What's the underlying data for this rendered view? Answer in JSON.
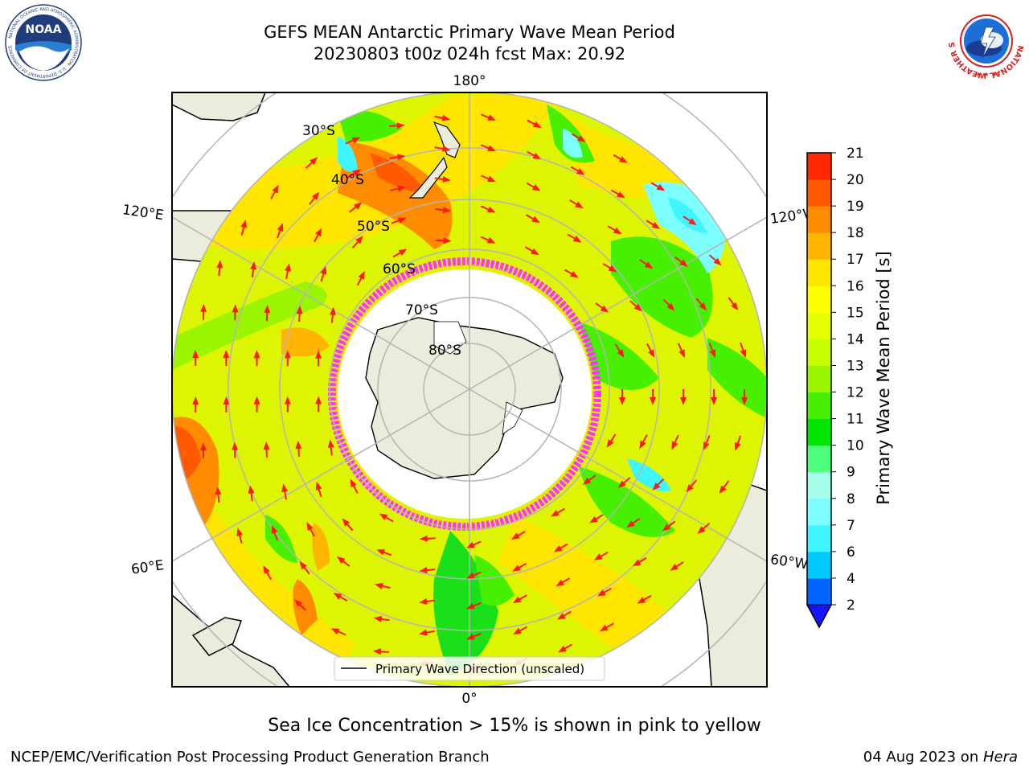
{
  "header": {
    "title_line1": "GEFS MEAN Antarctic Primary Wave Mean Period",
    "title_line2": "20230803 t00z 024h fcst   Max: 20.92"
  },
  "logos": {
    "left": {
      "icon": "noaa-logo",
      "text": "NOAA",
      "ring_text": "NATIONAL OCEANIC AND ATMOSPHERIC ADMINISTRATION · U.S. DEPARTMENT OF COMMERCE"
    },
    "right": {
      "icon": "national-weather-service-logo",
      "ring_text": "NATIONAL WEATHER SERVICE"
    }
  },
  "map": {
    "projection": "south-polar-stereographic",
    "longitude_labels": {
      "top": "180°",
      "bottom": "0°",
      "upper_left": "120°E",
      "lower_left": "60°E",
      "upper_right": "120°W",
      "lower_right": "60°W"
    },
    "latitude_labels": [
      "30°S",
      "40°S",
      "50°S",
      "60°S",
      "70°S",
      "80°S"
    ],
    "legend_label": "Primary Wave Direction (unscaled)",
    "arrow_color": "#ff1a1a",
    "ocean_colors": {
      "dominant": "#ddf500",
      "swell_high": "#ff8c00",
      "swell_mid": "#ffd400",
      "short": "#19e019",
      "ice_edge": "#ff33ff",
      "land": "#ececdc",
      "ice": "#ffffff"
    }
  },
  "colorbar": {
    "label": "Primary Wave Mean Period [s]",
    "ticks": [
      "2",
      "4",
      "6",
      "7",
      "8",
      "9",
      "10",
      "11",
      "12",
      "13",
      "14",
      "15",
      "16",
      "17",
      "18",
      "19",
      "20",
      "21"
    ],
    "colors": [
      "#0064ff",
      "#00c8ff",
      "#3ff5ff",
      "#7dffff",
      "#a6ffea",
      "#4eff7e",
      "#00e600",
      "#46f000",
      "#9af500",
      "#c8ff00",
      "#e6ff00",
      "#ffff00",
      "#ffe600",
      "#ffb400",
      "#ff8c00",
      "#ff5a00",
      "#ff2800"
    ],
    "extend_color": "#1414ff"
  },
  "caption": "Sea Ice Concentration > 15% is shown in pink to yellow",
  "footer": {
    "left": "NCEP/EMC/Verification Post Processing Product Generation Branch",
    "right_date": "04 Aug 2023 on ",
    "right_machine": "Hera"
  }
}
